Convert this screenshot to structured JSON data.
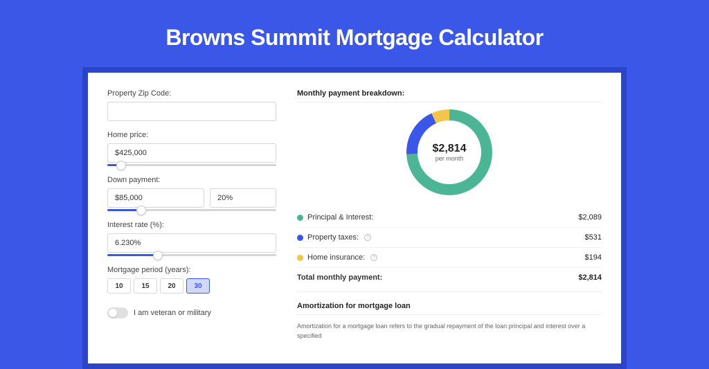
{
  "page": {
    "title": "Browns Summit Mortgage Calculator",
    "background_color": "#3a57e8",
    "card_accent_color": "#2c45c8"
  },
  "form": {
    "zip": {
      "label": "Property Zip Code:",
      "value": ""
    },
    "home_price": {
      "label": "Home price:",
      "value": "$425,000",
      "slider_pct": 8
    },
    "down_payment": {
      "label": "Down payment:",
      "amount": "$85,000",
      "percent": "20%",
      "slider_pct": 20
    },
    "interest_rate": {
      "label": "Interest rate (%):",
      "value": "6.230%",
      "slider_pct": 30
    },
    "mortgage_period": {
      "label": "Mortgage period (years):",
      "options": [
        "10",
        "15",
        "20",
        "30"
      ],
      "active": "30"
    },
    "veteran": {
      "label": "I am veteran or military",
      "on": false
    }
  },
  "breakdown": {
    "title": "Monthly payment breakdown:",
    "donut": {
      "center_amount": "$2,814",
      "center_sub": "per month",
      "ring_width": 16,
      "slices": [
        {
          "key": "principal_interest",
          "color": "#4cb596",
          "pct": 74.2
        },
        {
          "key": "property_taxes",
          "color": "#3a57e8",
          "pct": 18.9
        },
        {
          "key": "home_insurance",
          "color": "#f1c64b",
          "pct": 6.9
        }
      ]
    },
    "legend": [
      {
        "key": "principal_interest",
        "label": "Principal & Interest:",
        "value": "$2,089",
        "color": "#4cb596",
        "info": false
      },
      {
        "key": "property_taxes",
        "label": "Property taxes:",
        "value": "$531",
        "color": "#3a57e8",
        "info": true
      },
      {
        "key": "home_insurance",
        "label": "Home insurance:",
        "value": "$194",
        "color": "#f1c64b",
        "info": true
      }
    ],
    "total": {
      "label": "Total monthly payment:",
      "value": "$2,814"
    }
  },
  "amortization": {
    "title": "Amortization for mortgage loan",
    "body": "Amortization for a mortgage loan refers to the gradual repayment of the loan principal and interest over a specified"
  }
}
